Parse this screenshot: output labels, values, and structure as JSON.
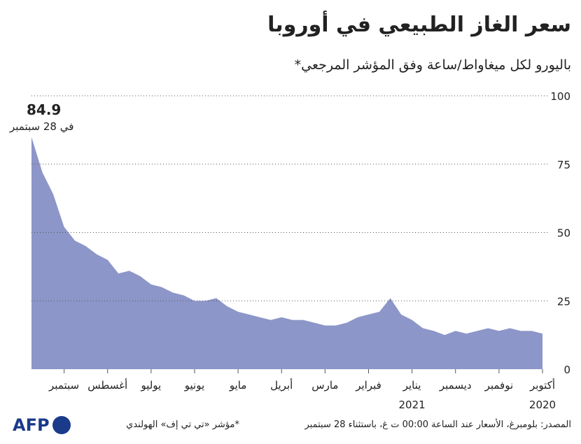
{
  "chart_data": {
    "type": "area",
    "title": "سعر الغاز الطبيعي في أوروبا",
    "subtitle": "باليورو لكل ميغاواط/ساعة وفق المؤشر المرجعي*",
    "annotation": "في 28 سبتمبر",
    "source": "المصدر: بلومبرغ، الأسعار عند الساعة 00:00 ت غ، باستثناء 28 سبتمبر",
    "note": "*مؤشر «تي تي إف» الهولندي",
    "logo": "AFP",
    "categories": [
      "أكتوبر",
      null,
      null,
      null,
      "نوفمبر",
      null,
      null,
      null,
      "ديسمبر",
      null,
      null,
      null,
      "يناير",
      null,
      null,
      null,
      "فبراير",
      null,
      null,
      null,
      "مارس",
      null,
      null,
      null,
      "أبريل",
      null,
      null,
      null,
      "مايو",
      null,
      null,
      null,
      "يونيو",
      null,
      null,
      null,
      "يوليو",
      null,
      null,
      null,
      "أغسطس",
      null,
      null,
      null,
      "سبتمبر",
      null,
      null,
      null
    ],
    "year_labels": [
      "2020",
      "2021"
    ],
    "values": [
      13,
      14,
      14,
      15,
      14,
      15,
      14,
      13,
      14,
      12.5,
      14,
      15,
      18,
      20,
      26,
      21,
      20,
      19,
      17,
      16,
      16,
      17,
      18,
      18,
      19,
      18,
      19,
      20,
      21,
      23,
      26,
      25,
      25,
      27,
      28,
      30,
      31,
      34,
      36,
      35,
      40,
      42,
      45,
      47,
      52,
      64,
      72,
      84.9
    ],
    "color": "#8d96c8",
    "ylim": [
      0,
      100
    ],
    "yticks": [
      0,
      25,
      50,
      75,
      100
    ],
    "grid": true
  }
}
